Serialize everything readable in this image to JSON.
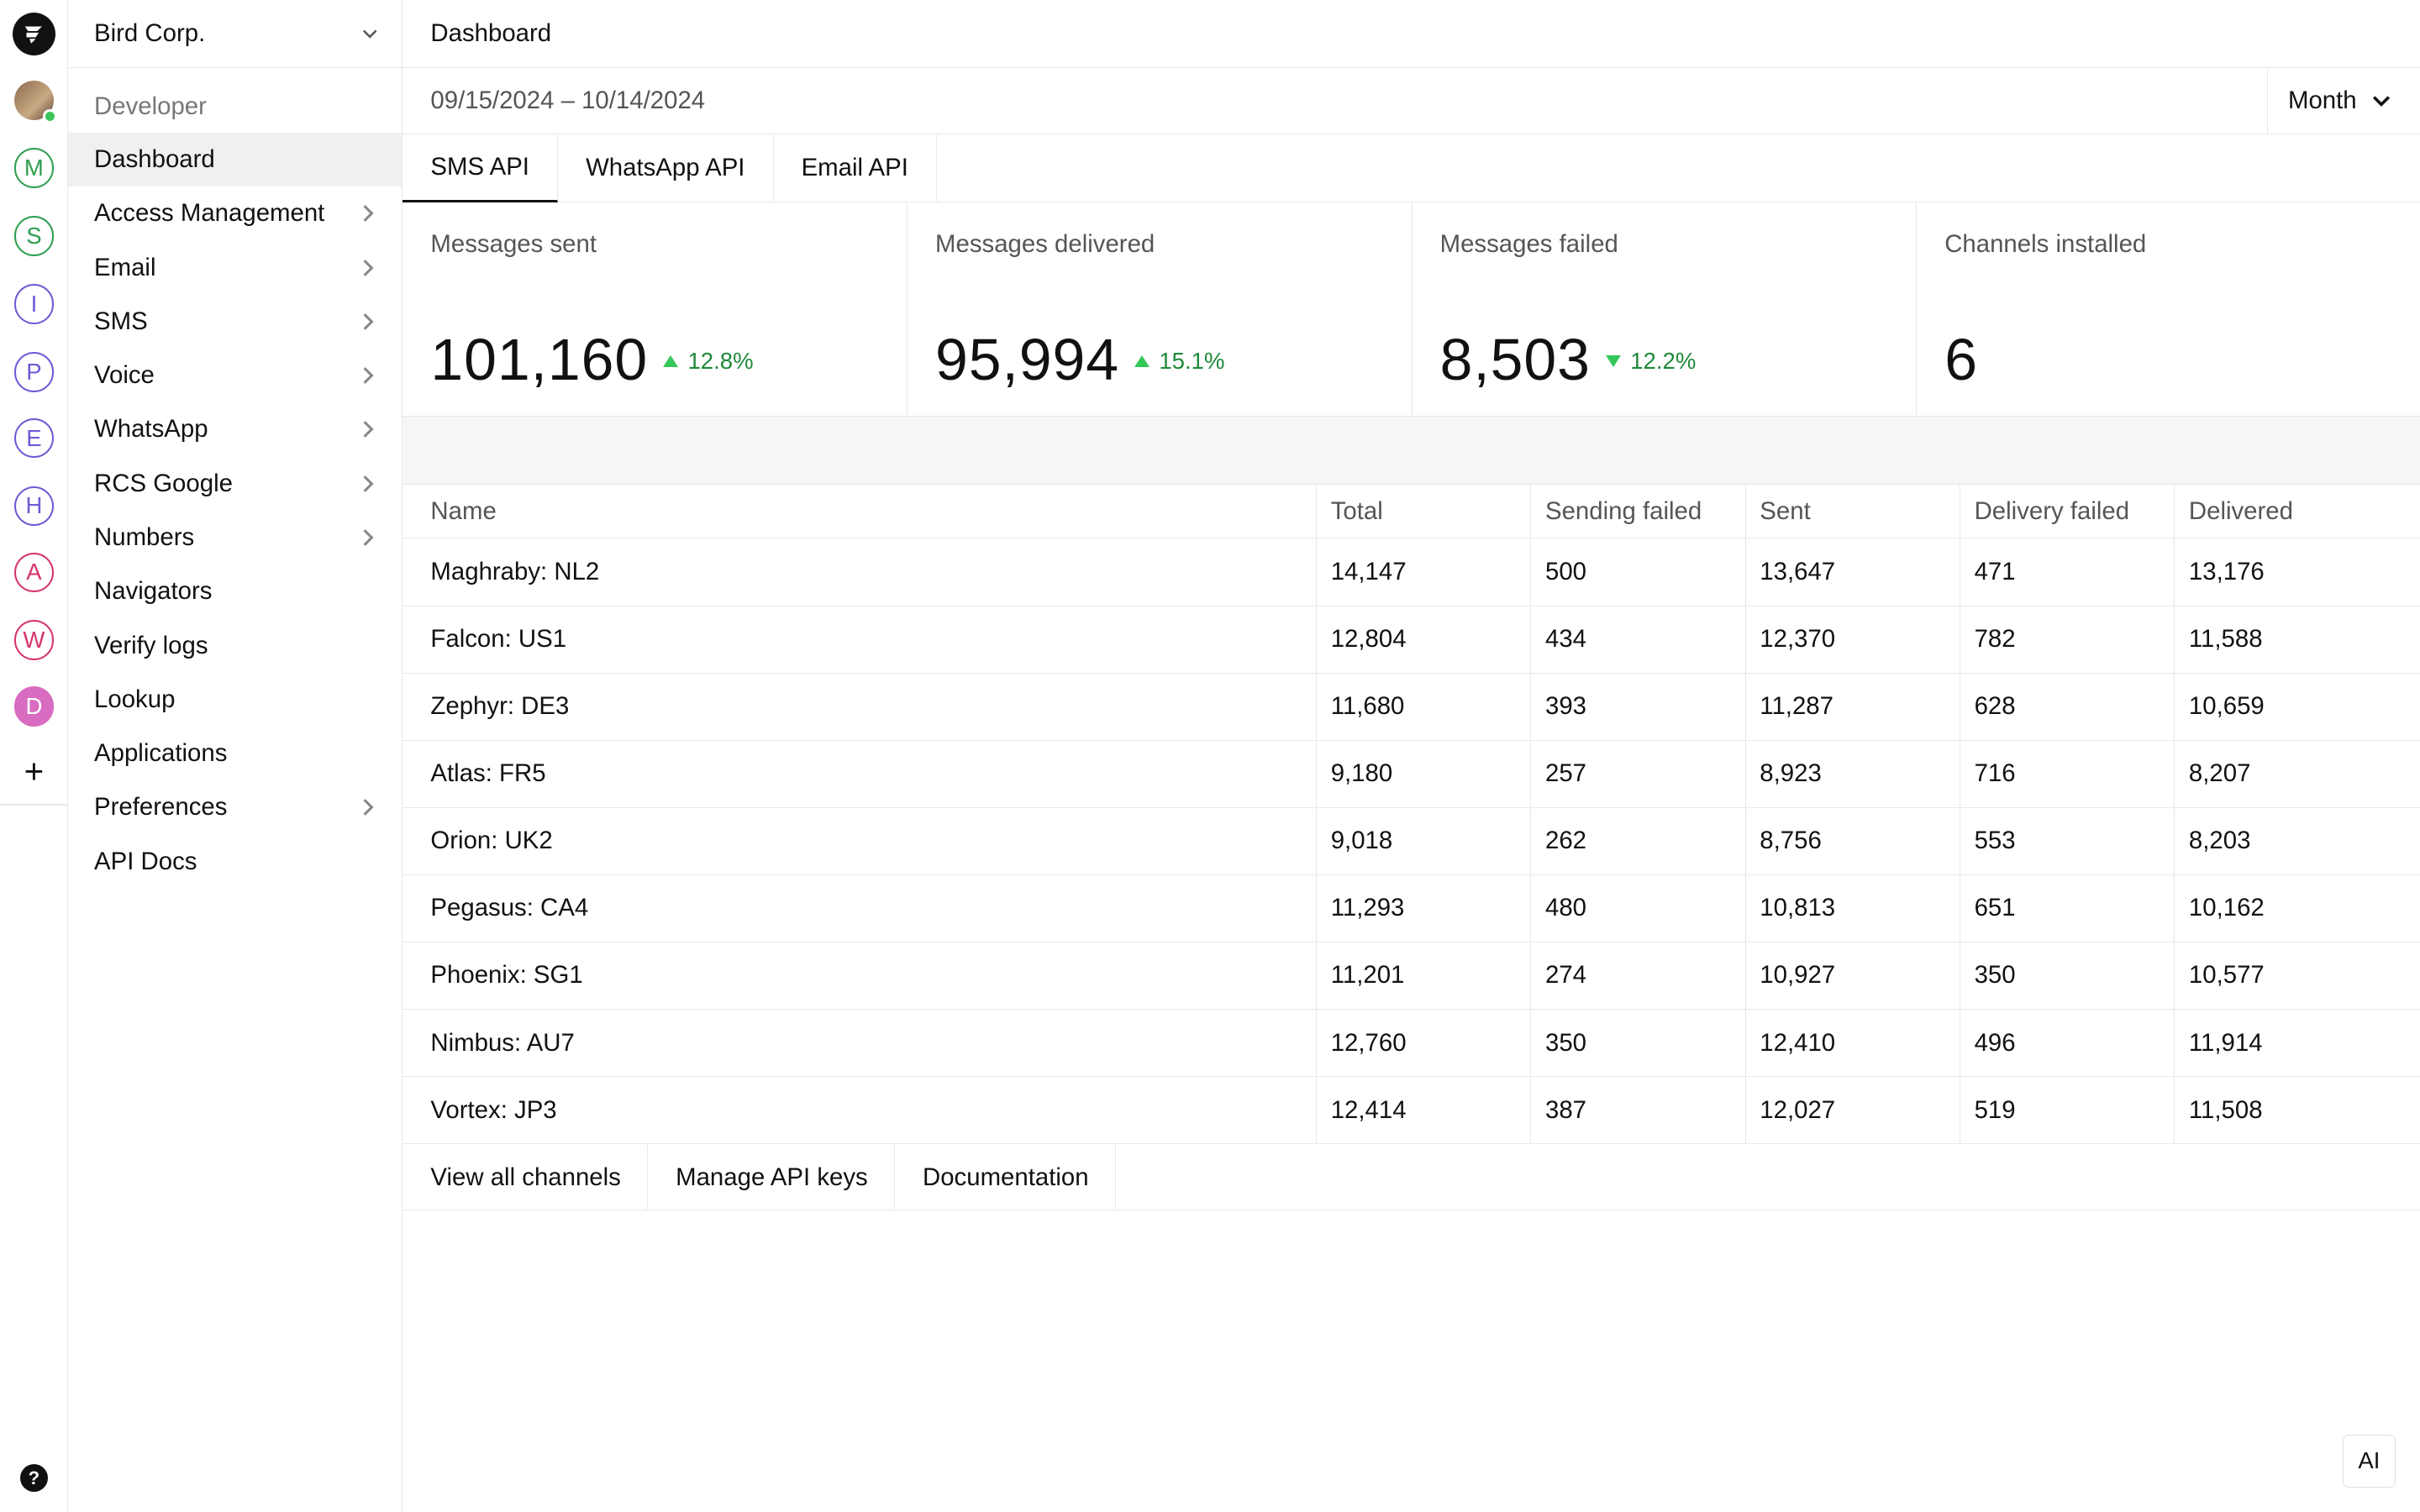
{
  "org": {
    "name": "Bird Corp."
  },
  "rail": {
    "workspaces": [
      {
        "letter": "M",
        "color": "#2e9e4f"
      },
      {
        "letter": "S",
        "color": "#2e9e4f"
      },
      {
        "letter": "I",
        "color": "#6b5bd6"
      },
      {
        "letter": "P",
        "color": "#6b5bd6"
      },
      {
        "letter": "E",
        "color": "#6b5bd6"
      },
      {
        "letter": "H",
        "color": "#6b5bd6"
      },
      {
        "letter": "A",
        "color": "#d6336c"
      },
      {
        "letter": "W",
        "color": "#d6336c"
      },
      {
        "letter": "D",
        "color": "#d86cc0"
      }
    ],
    "plus": "+",
    "help": "?"
  },
  "sidebar": {
    "section": "Developer",
    "items": [
      {
        "label": "Dashboard"
      },
      {
        "label": "Access Management"
      },
      {
        "label": "Email"
      },
      {
        "label": "SMS"
      },
      {
        "label": "Voice"
      },
      {
        "label": "WhatsApp"
      },
      {
        "label": "RCS Google"
      },
      {
        "label": "Numbers"
      },
      {
        "label": "Navigators"
      },
      {
        "label": "Verify logs"
      },
      {
        "label": "Lookup"
      },
      {
        "label": "Applications"
      },
      {
        "label": "Preferences"
      },
      {
        "label": "API Docs"
      }
    ]
  },
  "header": {
    "title": "Dashboard"
  },
  "dates": {
    "range": "09/15/2024 – 10/14/2024",
    "period": "Month"
  },
  "tabs": [
    "SMS API",
    "WhatsApp API",
    "Email API"
  ],
  "stats": [
    {
      "label": "Messages sent",
      "value": "101,160",
      "change": "12.8%",
      "dir": "up"
    },
    {
      "label": "Messages delivered",
      "value": "95,994",
      "change": "15.1%",
      "dir": "up"
    },
    {
      "label": "Messages failed",
      "value": "8,503",
      "change": "12.2%",
      "dir": "down"
    },
    {
      "label": "Channels installed",
      "value": "6",
      "change": "",
      "dir": ""
    }
  ],
  "table": {
    "headers": [
      "Name",
      "Total",
      "Sending failed",
      "Sent",
      "Delivery failed",
      "Delivered"
    ],
    "rows": [
      [
        "Maghraby: NL2",
        "14,147",
        "500",
        "13,647",
        "471",
        "13,176"
      ],
      [
        "Falcon: US1",
        "12,804",
        "434",
        "12,370",
        "782",
        "11,588"
      ],
      [
        "Zephyr: DE3",
        "11,680",
        "393",
        "11,287",
        "628",
        "10,659"
      ],
      [
        "Atlas: FR5",
        "9,180",
        "257",
        "8,923",
        "716",
        "8,207"
      ],
      [
        "Orion: UK2",
        "9,018",
        "262",
        "8,756",
        "553",
        "8,203"
      ],
      [
        "Pegasus: CA4",
        "11,293",
        "480",
        "10,813",
        "651",
        "10,162"
      ],
      [
        "Phoenix: SG1",
        "11,201",
        "274",
        "10,927",
        "350",
        "10,577"
      ],
      [
        "Nimbus: AU7",
        "12,760",
        "350",
        "12,410",
        "496",
        "11,914"
      ],
      [
        "Vortex: JP3",
        "12,414",
        "387",
        "12,027",
        "519",
        "11,508"
      ]
    ]
  },
  "actions": [
    "View all channels",
    "Manage API keys",
    "Documentation"
  ],
  "ai_button": "AI"
}
